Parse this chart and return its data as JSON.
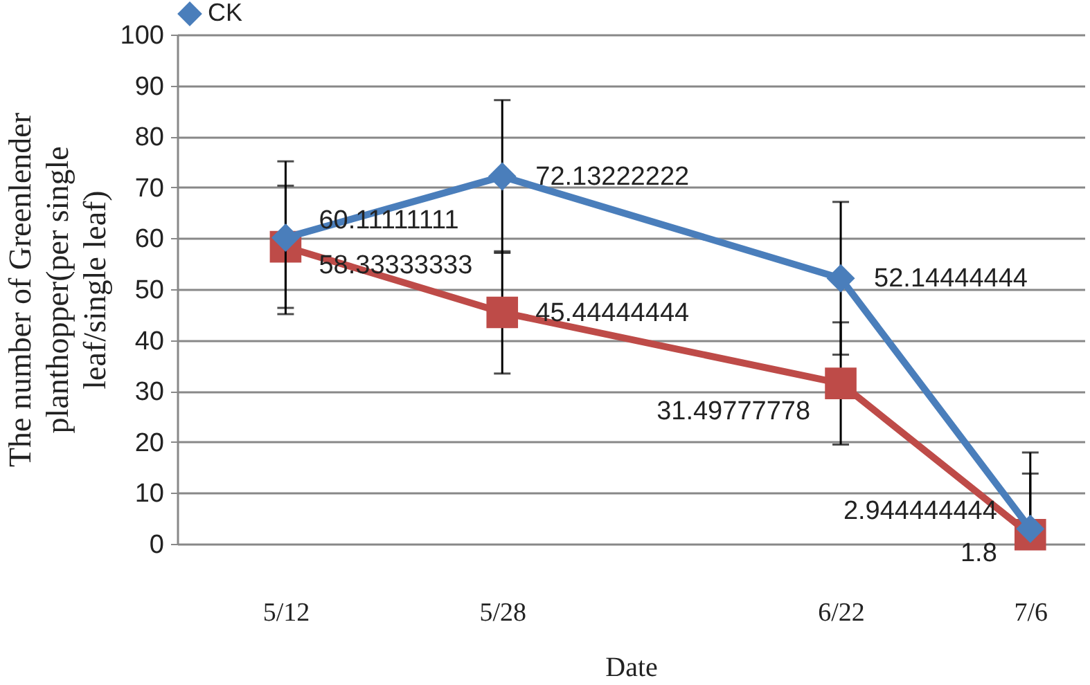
{
  "chart_data": {
    "type": "line",
    "xlabel": "Date",
    "ylabel": "The number of Greenlender planthopper(per single leaf/single leaf)",
    "x": [
      "--05-12",
      "--05-28",
      "--06-22",
      "--07-06"
    ],
    "xlim": [
      "--05-04",
      "--07-10"
    ],
    "xticks": [
      {
        "value": "--05-12",
        "label": "5/12"
      },
      {
        "value": "--05-28",
        "label": "5/28"
      },
      {
        "value": "--06-22",
        "label": "6/22"
      },
      {
        "value": "--07-06",
        "label": "7/6"
      }
    ],
    "ylim": [
      0,
      100
    ],
    "yticks": [
      0,
      10,
      20,
      30,
      40,
      50,
      60,
      70,
      80,
      90,
      100
    ],
    "series": [
      {
        "name": "CK",
        "color": "#4a7ebb",
        "marker": "diamond",
        "values": [
          60.11111111,
          72.13222222,
          52.14444444,
          2.944444444
        ],
        "errors": [
          15,
          15,
          15,
          [
            2.944444444,
            17.94
          ]
        ]
      },
      {
        "color": "#be4b48",
        "marker": "square",
        "values": [
          58.33333333,
          45.44444444,
          31.49777778,
          1.8
        ],
        "errors": [
          12,
          12,
          12,
          [
            1.8,
            13.8
          ]
        ]
      }
    ],
    "data_labels": true,
    "grid": "y",
    "legend": "top",
    "line_style": "solid"
  }
}
